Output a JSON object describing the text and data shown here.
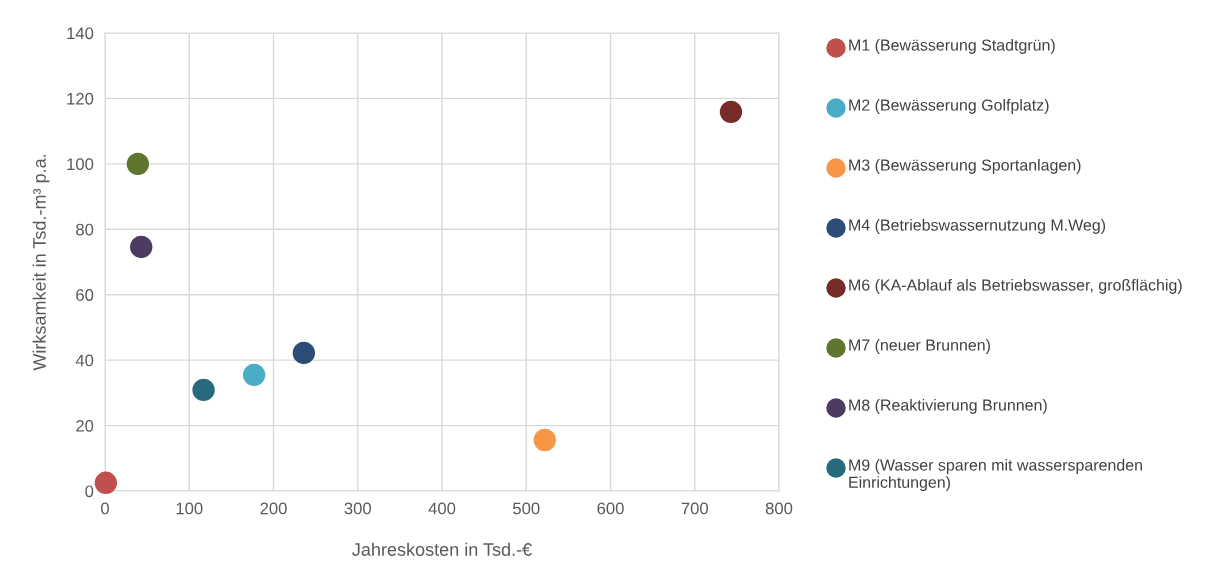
{
  "chart_data": {
    "type": "scatter",
    "xlabel": "Jahreskosten in Tsd.-€",
    "ylabel": "Wirksamkeit in Tsd.-m³ p.a.",
    "xlim": [
      0,
      800
    ],
    "xticks": [
      0,
      100,
      200,
      300,
      400,
      500,
      600,
      700,
      800
    ],
    "ylim": [
      0,
      140
    ],
    "yticks": [
      0,
      20,
      40,
      60,
      80,
      100,
      120,
      140
    ],
    "grid": true,
    "legend": "right",
    "marker": "circle",
    "series": [
      {
        "name": "M1 (Bewässerung Stadtgrün)",
        "color": "#c0504d",
        "x": [
          1
        ],
        "values": [
          2.5
        ]
      },
      {
        "name": "M2 (Bewässerung Golfplatz)",
        "color": "#4bacc6",
        "x": [
          177
        ],
        "values": [
          35.5
        ]
      },
      {
        "name": "M3 (Bewässerung Sportanlagen)",
        "color": "#f79646",
        "x": [
          522
        ],
        "values": [
          15.6
        ]
      },
      {
        "name": "M4 (Betriebswassernutzung M.Weg)",
        "color": "#2c4d75",
        "x": [
          236
        ],
        "values": [
          42.2
        ]
      },
      {
        "name": "M6 (KA-Ablauf als Betriebswasser, großflächig)",
        "color": "#772c2a",
        "x": [
          743
        ],
        "values": [
          115.9
        ]
      },
      {
        "name": "M7 (neuer Brunnen)",
        "color": "#5f7530",
        "x": [
          39
        ],
        "values": [
          100
        ]
      },
      {
        "name": "M8 (Reaktivierung Brunnen)",
        "color": "#4d3b62",
        "x": [
          43
        ],
        "values": [
          74.6
        ]
      },
      {
        "name": "M9 (Wasser sparen mit wassersparenden Einrichtungen)",
        "color": "#276a7c",
        "x": [
          117
        ],
        "values": [
          30.9
        ]
      }
    ]
  }
}
